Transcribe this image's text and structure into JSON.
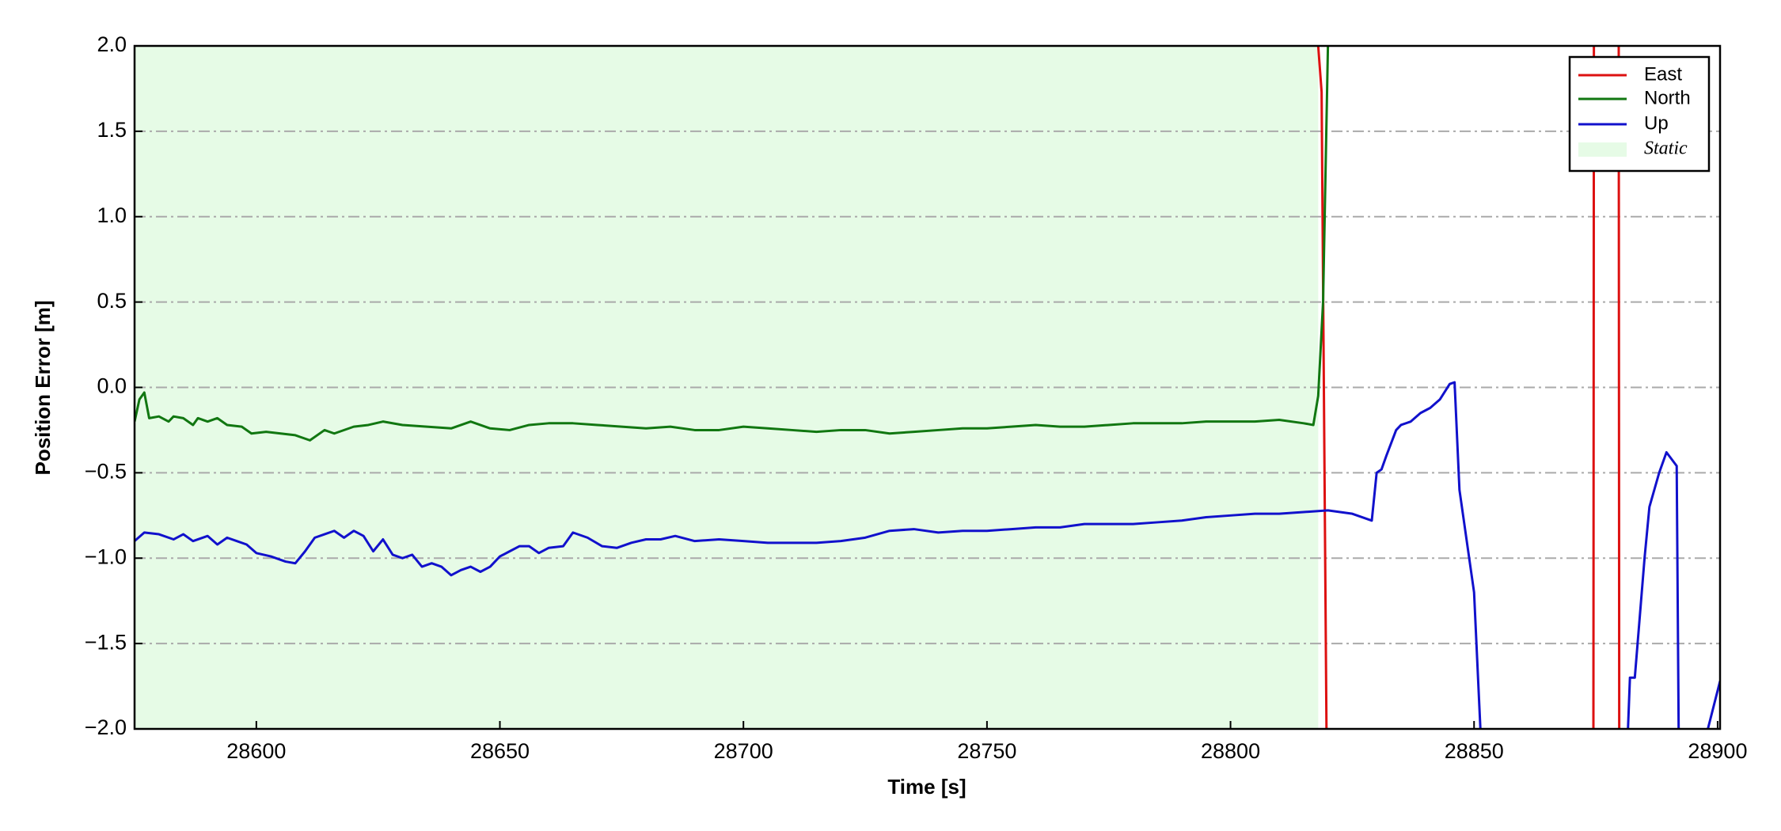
{
  "chart_data": {
    "type": "line",
    "xlabel": "Time [s]",
    "ylabel": "Position Error [m]",
    "xlim": [
      28575,
      28900.5
    ],
    "ylim": [
      -2,
      2
    ],
    "xticks": [
      28600,
      28650,
      28700,
      28750,
      28800,
      28850,
      28900
    ],
    "yticks": [
      {
        "value": -2,
        "label": "−2.0"
      },
      {
        "value": -1.5,
        "label": "−1.5"
      },
      {
        "value": -1,
        "label": "−1.0"
      },
      {
        "value": -0.5,
        "label": "−0.5"
      },
      {
        "value": 0,
        "label": "0.0"
      },
      {
        "value": 0.5,
        "label": "0.5"
      },
      {
        "value": 1,
        "label": "1.0"
      },
      {
        "value": 1.5,
        "label": "1.5"
      },
      {
        "value": 2,
        "label": "2.0"
      }
    ],
    "grid": true,
    "legend": "upper right",
    "shaded": {
      "name": "Static",
      "color": "#e6fbe6",
      "x": [
        28575,
        28818
      ]
    },
    "series": [
      {
        "name": "East",
        "color": "#dd1111",
        "x": [
          28818,
          28818.7,
          28819.7,
          null,
          28874.5,
          28874.6,
          null,
          28879.7,
          28879.8
        ],
        "values": [
          2.0,
          1.73,
          -2.0,
          null,
          -2.0,
          2.0,
          null,
          2.0,
          -2.0
        ]
      },
      {
        "name": "North",
        "color": "#117711",
        "x": [
          28575,
          28576,
          28577,
          28578,
          28580,
          28582,
          28583,
          28585,
          28587,
          28588,
          28590,
          28592,
          28594,
          28597,
          28599,
          28602,
          28605,
          28608,
          28611,
          28614,
          28616,
          28620,
          28623,
          28626,
          28630,
          28635,
          28640,
          28644,
          28648,
          28652,
          28656,
          28660,
          28665,
          28670,
          28675,
          28680,
          28685,
          28690,
          28695,
          28700,
          28705,
          28710,
          28715,
          28720,
          28725,
          28730,
          28735,
          28740,
          28745,
          28750,
          28755,
          28760,
          28765,
          28770,
          28775,
          28780,
          28785,
          28790,
          28795,
          28800,
          28805,
          28810,
          28815,
          28817,
          28818,
          28819,
          28820
        ],
        "values": [
          -0.2,
          -0.07,
          -0.03,
          -0.18,
          -0.17,
          -0.2,
          -0.17,
          -0.18,
          -0.22,
          -0.18,
          -0.2,
          -0.18,
          -0.22,
          -0.23,
          -0.27,
          -0.26,
          -0.27,
          -0.28,
          -0.31,
          -0.25,
          -0.27,
          -0.23,
          -0.22,
          -0.2,
          -0.22,
          -0.23,
          -0.24,
          -0.2,
          -0.24,
          -0.25,
          -0.22,
          -0.21,
          -0.21,
          -0.22,
          -0.23,
          -0.24,
          -0.23,
          -0.25,
          -0.25,
          -0.23,
          -0.24,
          -0.25,
          -0.26,
          -0.25,
          -0.25,
          -0.27,
          -0.26,
          -0.25,
          -0.24,
          -0.24,
          -0.23,
          -0.22,
          -0.23,
          -0.23,
          -0.22,
          -0.21,
          -0.21,
          -0.21,
          -0.2,
          -0.2,
          -0.2,
          -0.19,
          -0.21,
          -0.22,
          -0.05,
          0.5,
          2.0
        ]
      },
      {
        "name": "Up",
        "color": "#1111cc",
        "x": [
          28575,
          28577,
          28580,
          28583,
          28585,
          28587,
          28590,
          28592,
          28594,
          28596,
          28598,
          28600,
          28603,
          28606,
          28608,
          28610,
          28612,
          28614,
          28616,
          28618,
          28620,
          28622,
          28624,
          28626,
          28628,
          28630,
          28632,
          28634,
          28636,
          28638,
          28640,
          28642,
          28644,
          28646,
          28648,
          28650,
          28652,
          28654,
          28656,
          28658,
          28660,
          28663,
          28665,
          28668,
          28671,
          28674,
          28677,
          28680,
          28683,
          28686,
          28690,
          28695,
          28700,
          28705,
          28710,
          28715,
          28720,
          28725,
          28730,
          28735,
          28740,
          28745,
          28750,
          28755,
          28760,
          28765,
          28770,
          28775,
          28780,
          28785,
          28790,
          28795,
          28800,
          28805,
          28810,
          28815,
          28820,
          28825,
          28829,
          28830,
          28831,
          28832,
          28834,
          28835,
          28837,
          28839,
          28841,
          28843,
          28845,
          28846,
          28847,
          28850,
          28851.3,
          null,
          28881.6,
          28882,
          28883,
          28885,
          28886,
          28888,
          28889.5,
          28891.6,
          28892,
          null,
          28898,
          28900.5
        ],
        "values": [
          -0.9,
          -0.85,
          -0.86,
          -0.89,
          -0.86,
          -0.9,
          -0.87,
          -0.92,
          -0.88,
          -0.9,
          -0.92,
          -0.97,
          -0.99,
          -1.02,
          -1.03,
          -0.96,
          -0.88,
          -0.86,
          -0.84,
          -0.88,
          -0.84,
          -0.87,
          -0.96,
          -0.89,
          -0.98,
          -1.0,
          -0.98,
          -1.05,
          -1.03,
          -1.05,
          -1.1,
          -1.07,
          -1.05,
          -1.08,
          -1.05,
          -0.99,
          -0.96,
          -0.93,
          -0.93,
          -0.97,
          -0.94,
          -0.93,
          -0.85,
          -0.88,
          -0.93,
          -0.94,
          -0.91,
          -0.89,
          -0.89,
          -0.87,
          -0.9,
          -0.89,
          -0.9,
          -0.91,
          -0.91,
          -0.91,
          -0.9,
          -0.88,
          -0.84,
          -0.83,
          -0.85,
          -0.84,
          -0.84,
          -0.83,
          -0.82,
          -0.82,
          -0.8,
          -0.8,
          -0.8,
          -0.79,
          -0.78,
          -0.76,
          -0.75,
          -0.74,
          -0.74,
          -0.73,
          -0.72,
          -0.74,
          -0.78,
          -0.5,
          -0.48,
          -0.4,
          -0.25,
          -0.22,
          -0.2,
          -0.15,
          -0.12,
          -0.07,
          0.02,
          0.03,
          -0.6,
          -1.2,
          -2.0,
          null,
          -2.0,
          -1.7,
          -1.7,
          -1.0,
          -0.7,
          -0.5,
          -0.38,
          -0.46,
          -2.0,
          null,
          -2.0,
          -1.72
        ]
      }
    ]
  }
}
